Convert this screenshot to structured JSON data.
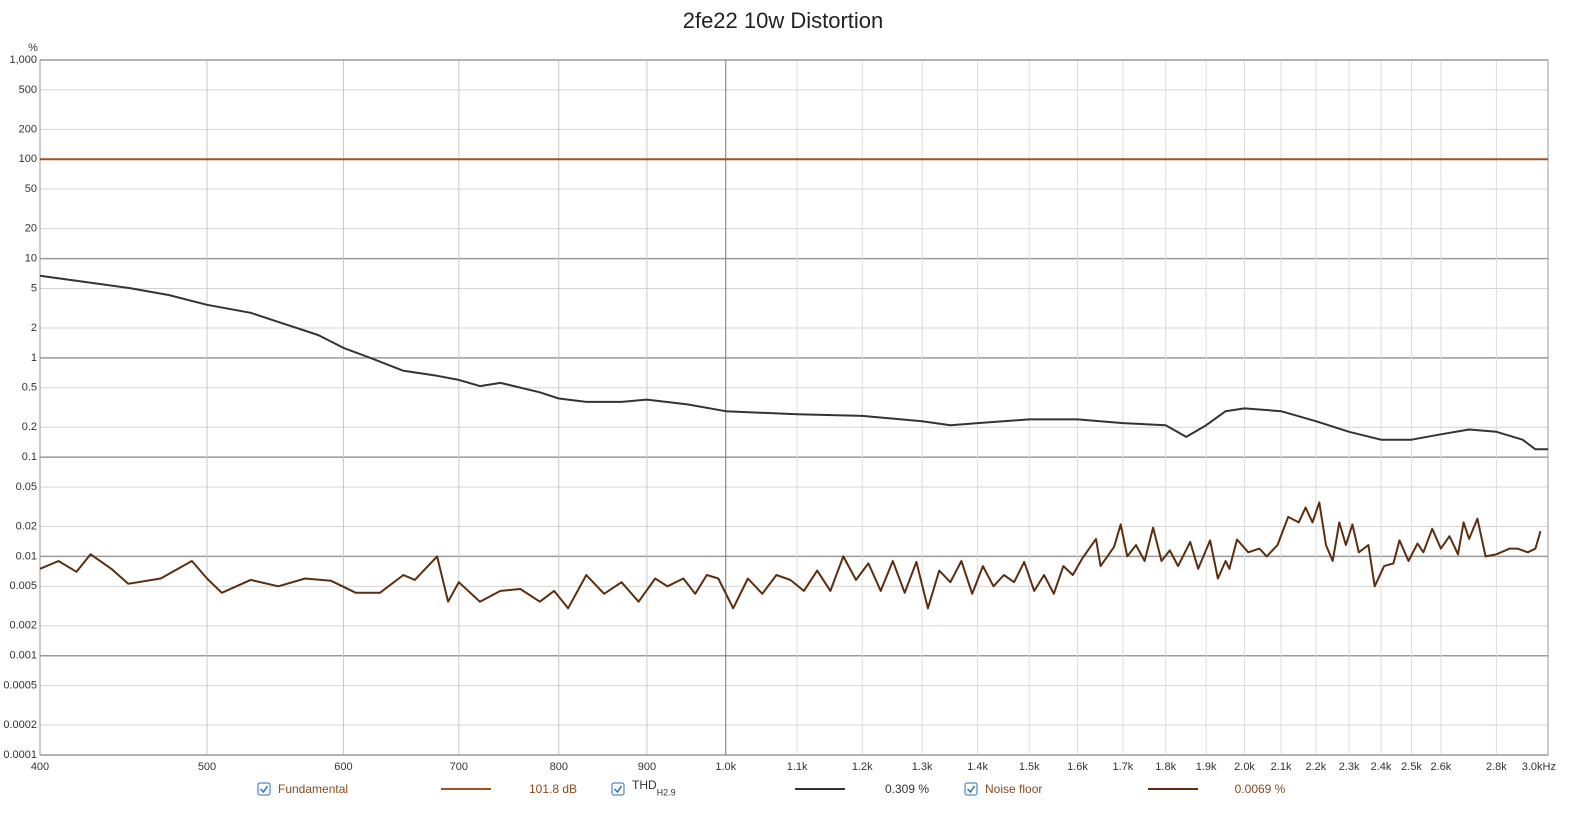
{
  "chart_data": {
    "type": "line",
    "title": "2fe22 10w Distortion",
    "ylabel": "%",
    "xscale": "log",
    "yscale": "log",
    "grid": true,
    "xlim": [
      400,
      3000
    ],
    "ylim": [
      0.0001,
      1000
    ],
    "xticks": [
      400,
      500,
      600,
      700,
      800,
      900,
      {
        "value": 1000,
        "label": "1.0k"
      },
      {
        "value": 1100,
        "label": "1.1k"
      },
      {
        "value": 1200,
        "label": "1.2k"
      },
      {
        "value": 1300,
        "label": "1.3k"
      },
      {
        "value": 1400,
        "label": "1.4k"
      },
      {
        "value": 1500,
        "label": "1.5k"
      },
      {
        "value": 1600,
        "label": "1.6k"
      },
      {
        "value": 1700,
        "label": "1.7k"
      },
      {
        "value": 1800,
        "label": "1.8k"
      },
      {
        "value": 1900,
        "label": "1.9k"
      },
      {
        "value": 2000,
        "label": "2.0k"
      },
      {
        "value": 2100,
        "label": "2.1k"
      },
      {
        "value": 2200,
        "label": "2.2k"
      },
      {
        "value": 2300,
        "label": "2.3k"
      },
      {
        "value": 2400,
        "label": "2.4k"
      },
      {
        "value": 2500,
        "label": "2.5k"
      },
      {
        "value": 2600,
        "label": "2.6k"
      },
      {
        "value": 2800,
        "label": "2.8k"
      },
      {
        "value": 3000,
        "label": "3.0kHz"
      }
    ],
    "yticks": [
      {
        "value": 1000,
        "label": "1,000"
      },
      500,
      200,
      100,
      50,
      20,
      10,
      5,
      2,
      1,
      0.5,
      0.2,
      0.1,
      0.05,
      0.02,
      0.01,
      0.005,
      0.002,
      0.001,
      0.0005,
      0.0002,
      0.0001
    ],
    "series": [
      {
        "name": "Fundamental",
        "color": "#a0521e",
        "readout": "101.8 dB",
        "x": [
          400,
          3000
        ],
        "values": [
          100,
          100
        ]
      },
      {
        "name": "THD",
        "name_sub": "H2.9",
        "color": "#333333",
        "readout": "0.309 %",
        "x": [
          400,
          450,
          475,
          500,
          530,
          550,
          580,
          600,
          620,
          650,
          680,
          700,
          720,
          740,
          780,
          800,
          830,
          870,
          900,
          950,
          1000,
          1100,
          1200,
          1300,
          1350,
          1400,
          1500,
          1600,
          1700,
          1800,
          1850,
          1900,
          1950,
          2000,
          2100,
          2200,
          2300,
          2400,
          2500,
          2600,
          2700,
          2800,
          2900,
          2950,
          3000
        ],
        "values": [
          6.7,
          5.07,
          4.3,
          3.42,
          2.84,
          2.3,
          1.7,
          1.26,
          1.02,
          0.74,
          0.66,
          0.6,
          0.52,
          0.56,
          0.45,
          0.39,
          0.36,
          0.36,
          0.38,
          0.34,
          0.29,
          0.27,
          0.26,
          0.23,
          0.21,
          0.22,
          0.24,
          0.24,
          0.22,
          0.21,
          0.16,
          0.21,
          0.29,
          0.31,
          0.29,
          0.23,
          0.18,
          0.15,
          0.15,
          0.17,
          0.19,
          0.18,
          0.15,
          0.12,
          0.12
        ]
      },
      {
        "name": "Noise floor",
        "color": "#5c2e0e",
        "readout": "0.0069 %",
        "x": [
          400,
          410,
          420,
          428,
          440,
          450,
          470,
          490,
          500,
          510,
          530,
          550,
          570,
          590,
          610,
          630,
          650,
          660,
          680,
          690,
          700,
          720,
          740,
          760,
          780,
          795,
          810,
          830,
          850,
          870,
          890,
          910,
          925,
          945,
          960,
          975,
          990,
          1010,
          1030,
          1050,
          1070,
          1090,
          1110,
          1130,
          1150,
          1170,
          1190,
          1210,
          1230,
          1250,
          1270,
          1290,
          1310,
          1330,
          1350,
          1370,
          1390,
          1410,
          1430,
          1450,
          1470,
          1490,
          1510,
          1530,
          1550,
          1570,
          1590,
          1610,
          1640,
          1650,
          1680,
          1695,
          1710,
          1730,
          1750,
          1770,
          1790,
          1810,
          1830,
          1860,
          1880,
          1910,
          1930,
          1950,
          1960,
          1980,
          2010,
          2040,
          2060,
          2090,
          2120,
          2150,
          2170,
          2190,
          2210,
          2230,
          2250,
          2270,
          2290,
          2310,
          2330,
          2360,
          2380,
          2410,
          2440,
          2460,
          2490,
          2520,
          2540,
          2570,
          2600,
          2630,
          2660,
          2680,
          2700,
          2730,
          2760,
          2800,
          2850,
          2880,
          2920,
          2950,
          2970
        ],
        "values": [
          0.0075,
          0.009,
          0.007,
          0.0105,
          0.0075,
          0.0053,
          0.006,
          0.009,
          0.006,
          0.0043,
          0.0058,
          0.005,
          0.006,
          0.0057,
          0.0043,
          0.0043,
          0.0065,
          0.0058,
          0.01,
          0.0035,
          0.0055,
          0.0035,
          0.0045,
          0.0047,
          0.0035,
          0.0045,
          0.003,
          0.0065,
          0.0042,
          0.0055,
          0.0035,
          0.006,
          0.005,
          0.006,
          0.0042,
          0.0065,
          0.006,
          0.003,
          0.006,
          0.0042,
          0.0065,
          0.0058,
          0.0045,
          0.0072,
          0.0045,
          0.01,
          0.0058,
          0.0085,
          0.0045,
          0.009,
          0.0043,
          0.0088,
          0.003,
          0.0072,
          0.0055,
          0.009,
          0.0042,
          0.008,
          0.005,
          0.0065,
          0.0055,
          0.0088,
          0.0045,
          0.0065,
          0.0042,
          0.008,
          0.0065,
          0.0095,
          0.015,
          0.008,
          0.0125,
          0.021,
          0.01,
          0.013,
          0.009,
          0.0195,
          0.009,
          0.0115,
          0.008,
          0.014,
          0.0075,
          0.0145,
          0.006,
          0.009,
          0.0075,
          0.0148,
          0.011,
          0.012,
          0.01,
          0.013,
          0.025,
          0.022,
          0.031,
          0.022,
          0.035,
          0.013,
          0.009,
          0.022,
          0.013,
          0.021,
          0.011,
          0.013,
          0.005,
          0.008,
          0.0085,
          0.0145,
          0.009,
          0.0135,
          0.011,
          0.019,
          0.012,
          0.016,
          0.0105,
          0.022,
          0.015,
          0.024,
          0.01,
          0.0105,
          0.012,
          0.012,
          0.011,
          0.012,
          0.018
        ]
      }
    ]
  }
}
